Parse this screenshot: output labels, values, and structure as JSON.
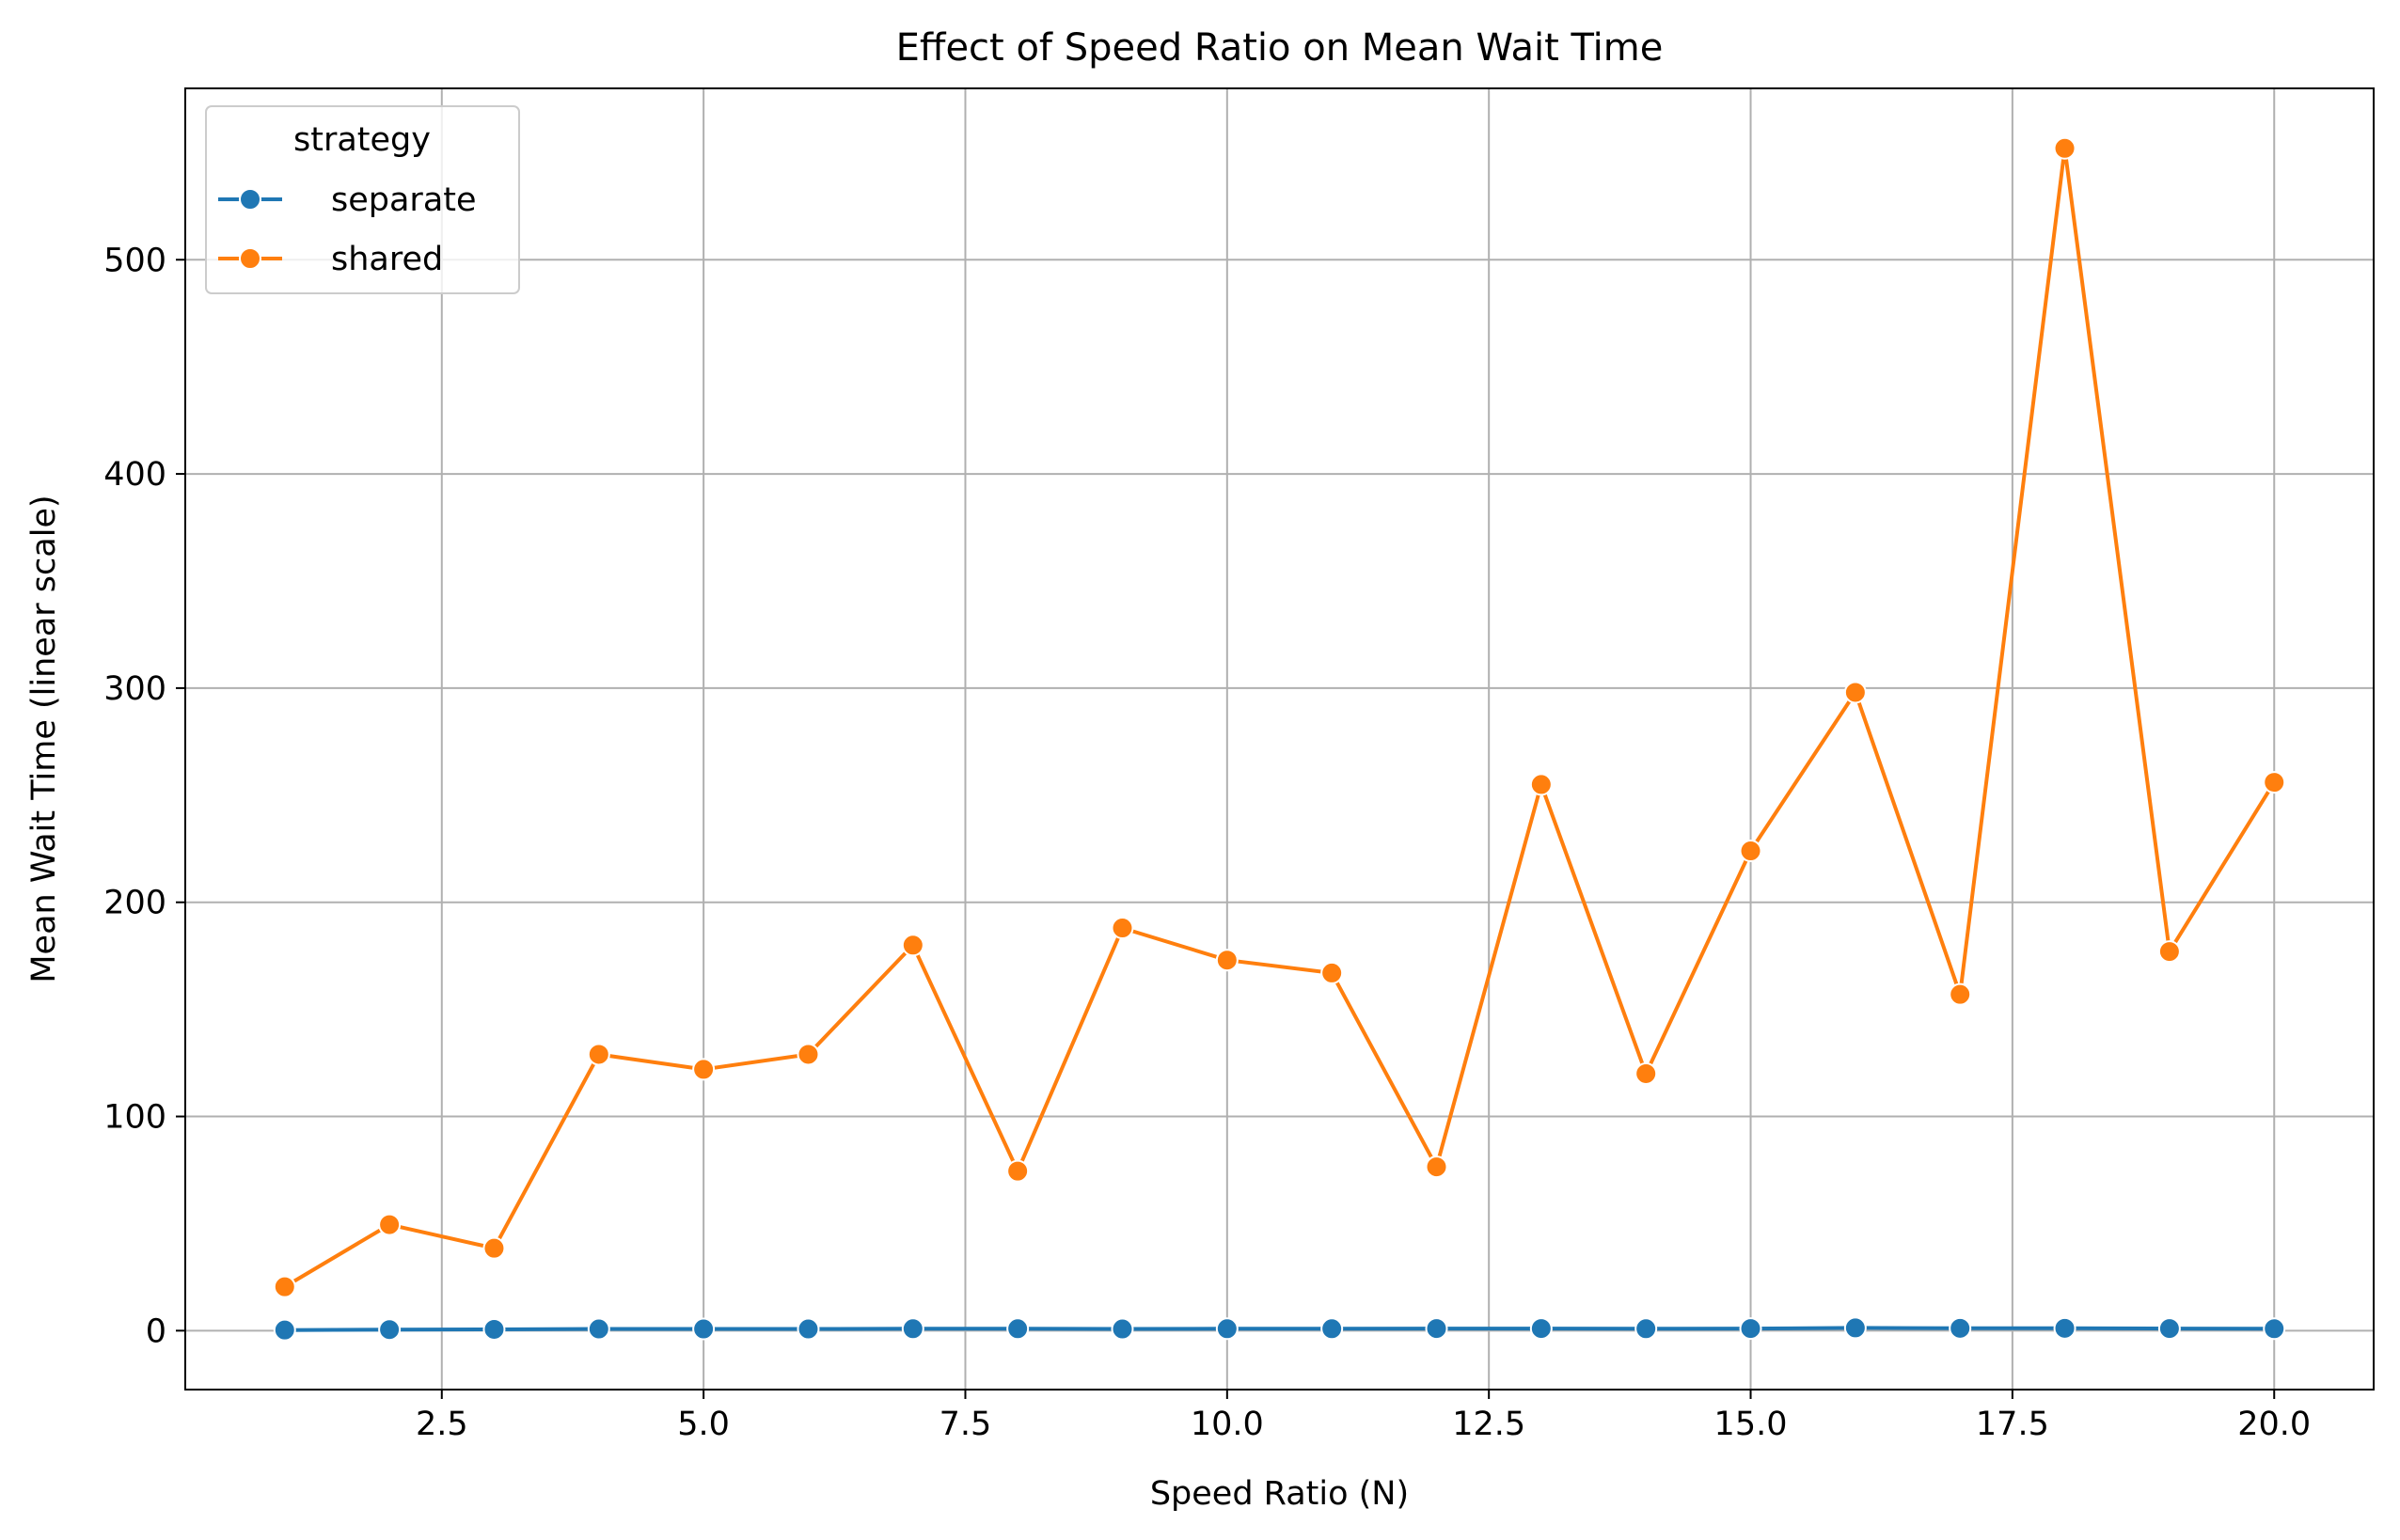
{
  "chart_data": {
    "type": "line",
    "title": "Effect of Speed Ratio on Mean Wait Time",
    "xlabel": "Speed Ratio (N)",
    "ylabel": "Mean Wait Time (linear scale)",
    "xlim": [
      0.05,
      20.95
    ],
    "ylim": [
      -27.5,
      580
    ],
    "xticks": [
      2.5,
      5.0,
      7.5,
      10.0,
      12.5,
      15.0,
      17.5,
      20.0
    ],
    "xtick_labels": [
      "2.5",
      "5.0",
      "7.5",
      "10.0",
      "12.5",
      "15.0",
      "17.5",
      "20.0"
    ],
    "yticks": [
      0,
      100,
      200,
      300,
      400,
      500
    ],
    "ytick_labels": [
      "0",
      "100",
      "200",
      "300",
      "400",
      "500"
    ],
    "grid": true,
    "legend": {
      "title": "strategy",
      "placement": "top-left"
    },
    "x": [
      1,
      2,
      3,
      4,
      5,
      6,
      7,
      8,
      9,
      10,
      11,
      12,
      13,
      14,
      15,
      16,
      17,
      18,
      19,
      20
    ],
    "series": [
      {
        "name": "separate",
        "color": "#1f77b4",
        "values": [
          0.3,
          0.5,
          0.6,
          0.8,
          0.8,
          0.8,
          0.9,
          0.9,
          0.8,
          0.9,
          0.9,
          1.0,
          1.0,
          0.9,
          1.0,
          1.3,
          1.1,
          1.1,
          1.0,
          0.9
        ]
      },
      {
        "name": "shared",
        "color": "#ff7f0e",
        "values": [
          20.5,
          49.5,
          38.5,
          129,
          122,
          129,
          180,
          74.5,
          188,
          173,
          167,
          76.5,
          255,
          120,
          224,
          298,
          157,
          552,
          177,
          256
        ]
      }
    ]
  }
}
